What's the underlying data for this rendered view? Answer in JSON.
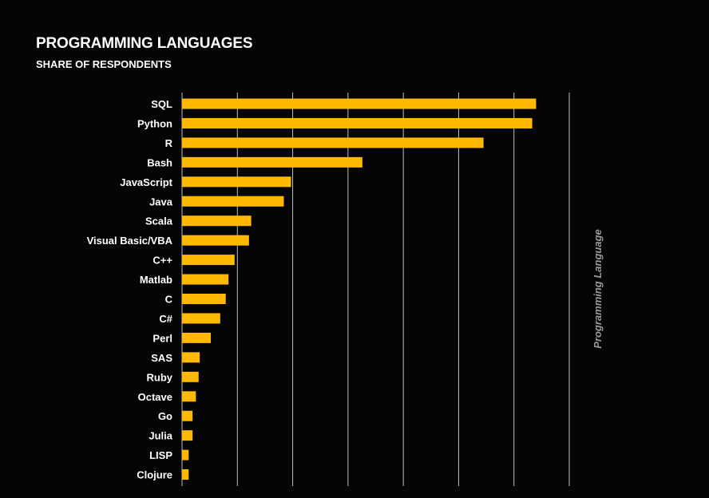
{
  "chart_data": {
    "type": "bar",
    "orientation": "horizontal",
    "title": "PROGRAMMING LANGUAGES",
    "subtitle": "SHARE OF RESPONDENTS",
    "ylabel": "Programming Language",
    "xlabel": "",
    "categories": [
      "SQL",
      "Python",
      "R",
      "Bash",
      "JavaScript",
      "Java",
      "Scala",
      "Visual Basic/VBA",
      "C++",
      "Matlab",
      "C",
      "C#",
      "Perl",
      "SAS",
      "Ruby",
      "Octave",
      "Go",
      "Julia",
      "LISP",
      "Clojure"
    ],
    "values": [
      64,
      63.3,
      54.5,
      32.6,
      19.7,
      18.4,
      12.5,
      12.1,
      9.5,
      8.4,
      7.9,
      6.9,
      5.2,
      3.2,
      3.0,
      2.5,
      1.9,
      1.9,
      1.2,
      1.2
    ],
    "xlim": [
      0,
      70
    ],
    "gridlines": [
      0,
      10,
      20,
      30,
      40,
      50,
      60,
      70
    ],
    "grid": true,
    "bar_color": "#FFB900",
    "grid_color": "#bfbfbf",
    "background": "#050507"
  }
}
